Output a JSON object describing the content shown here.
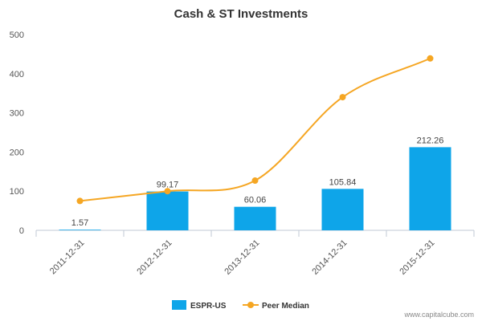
{
  "chart_data": {
    "type": "bar",
    "title": "Cash & ST Investments",
    "xlabel": "",
    "ylabel": "",
    "categories": [
      "2011-12-31",
      "2012-12-31",
      "2013-12-31",
      "2014-12-31",
      "2015-12-31"
    ],
    "ylim": [
      0,
      500
    ],
    "yticks": [
      0,
      100,
      200,
      300,
      400,
      500
    ],
    "series": [
      {
        "name": "ESPR-US",
        "type": "bar",
        "color": "#0ea5e9",
        "values": [
          1.57,
          99.17,
          60.06,
          105.84,
          212.26
        ],
        "labels": [
          "1.57",
          "99.17",
          "60.06",
          "105.84",
          "212.26"
        ]
      },
      {
        "name": "Peer Median",
        "type": "line",
        "color": "#f5a623",
        "values": [
          75,
          100,
          127,
          340,
          439
        ]
      }
    ],
    "legend_position": "bottom-center",
    "grid": false
  },
  "watermark": "www.capitalcube.com"
}
